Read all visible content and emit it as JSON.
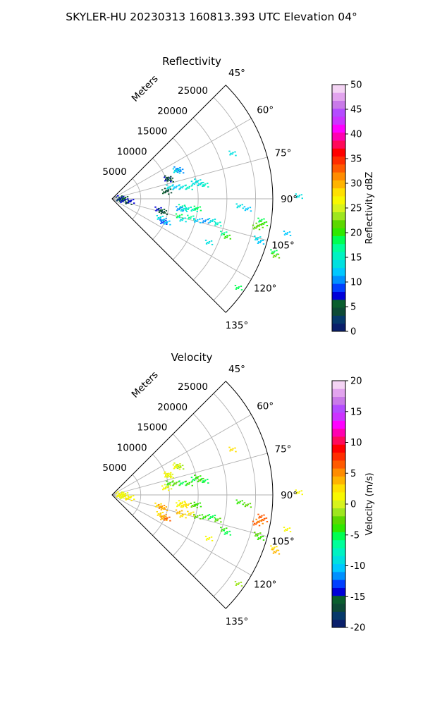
{
  "figure": {
    "title": "SKYLER-HU  20230313  160813.393 UTC Elevation 04°"
  },
  "chart_data": [
    {
      "type": "polar-sector",
      "title": "Reflectivity",
      "radial_axis_label": "Meters",
      "radial_ticks": [
        5000,
        10000,
        15000,
        20000,
        25000
      ],
      "radial_range": [
        0,
        28000
      ],
      "angle_range_deg": [
        45,
        135
      ],
      "angle_ticks": [
        45,
        60,
        75,
        90,
        105,
        120,
        135
      ],
      "angle_tick_labels": [
        "45°",
        "60°",
        "75°",
        "90°",
        "105°",
        "120°",
        "135°"
      ],
      "grid": true,
      "colorbar": {
        "label": "Reflectivity dBZ",
        "range": [
          0,
          50
        ],
        "ticks": [
          0,
          5,
          10,
          15,
          20,
          25,
          30,
          35,
          40,
          45,
          50
        ],
        "colors": [
          "#0a1f6b",
          "#06396a",
          "#0d4a36",
          "#0a5e2e",
          "#0000d8",
          "#0040ff",
          "#0090ff",
          "#00c8ff",
          "#00e0e0",
          "#00f2c2",
          "#00ff9a",
          "#00ff52",
          "#30e800",
          "#5cd800",
          "#9ee61e",
          "#d7f31c",
          "#f8f800",
          "#ffe000",
          "#ffb400",
          "#ff8c00",
          "#ff5a00",
          "#ff2d00",
          "#ff0000",
          "#ff0a5a",
          "#ff00b0",
          "#ff00ff",
          "#cc33ff",
          "#b44cff",
          "#c97ae8",
          "#e2a4ee",
          "#f4d4f4"
        ]
      },
      "gates": [
        {
          "az": 65,
          "r": 12500,
          "value": 11
        },
        {
          "az": 66,
          "r": 12200,
          "value": 13
        },
        {
          "az": 67,
          "r": 12800,
          "value": 10
        },
        {
          "az": 70,
          "r": 10200,
          "value": 8
        },
        {
          "az": 71,
          "r": 10600,
          "value": 6
        },
        {
          "az": 69,
          "r": 10400,
          "value": 4
        },
        {
          "az": 78,
          "r": 10200,
          "value": 13
        },
        {
          "az": 79,
          "r": 11300,
          "value": 12
        },
        {
          "az": 80,
          "r": 12400,
          "value": 14
        },
        {
          "az": 81,
          "r": 13500,
          "value": 15
        },
        {
          "az": 79,
          "r": 14600,
          "value": 14
        },
        {
          "az": 80,
          "r": 15600,
          "value": 13
        },
        {
          "az": 81,
          "r": 16300,
          "value": 15
        },
        {
          "az": 78,
          "r": 15200,
          "value": 13
        },
        {
          "az": 82,
          "r": 9300,
          "value": 6
        },
        {
          "az": 81,
          "r": 9800,
          "value": 4
        },
        {
          "az": 96,
          "r": 12200,
          "value": 17
        },
        {
          "az": 97,
          "r": 13300,
          "value": 16
        },
        {
          "az": 97,
          "r": 14300,
          "value": 15
        },
        {
          "az": 96,
          "r": 14900,
          "value": 18
        },
        {
          "az": 98,
          "r": 12500,
          "value": 13
        },
        {
          "az": 98,
          "r": 11800,
          "value": 10
        },
        {
          "az": 102,
          "r": 8200,
          "value": 8
        },
        {
          "az": 103,
          "r": 8800,
          "value": 5
        },
        {
          "az": 104,
          "r": 9200,
          "value": 4
        },
        {
          "az": 104,
          "r": 12000,
          "value": 18
        },
        {
          "az": 106,
          "r": 12700,
          "value": 14
        },
        {
          "az": 103,
          "r": 14000,
          "value": 17
        },
        {
          "az": 104,
          "r": 15200,
          "value": 12
        },
        {
          "az": 103,
          "r": 16600,
          "value": 10
        },
        {
          "az": 102,
          "r": 17800,
          "value": 13
        },
        {
          "az": 103,
          "r": 18800,
          "value": 16
        },
        {
          "az": 112,
          "r": 9600,
          "value": 10
        },
        {
          "az": 113,
          "r": 10300,
          "value": 12
        },
        {
          "az": 114,
          "r": 9700,
          "value": 9
        },
        {
          "az": 111,
          "r": 8900,
          "value": 13
        },
        {
          "az": 107,
          "r": 20300,
          "value": 17
        },
        {
          "az": 108,
          "r": 21000,
          "value": 20
        },
        {
          "az": 98,
          "r": 26200,
          "value": 18
        },
        {
          "az": 99,
          "r": 26700,
          "value": 20
        },
        {
          "az": 100,
          "r": 26000,
          "value": 22
        },
        {
          "az": 101,
          "r": 25500,
          "value": 21
        },
        {
          "az": 105,
          "r": 26200,
          "value": 14
        },
        {
          "az": 106,
          "r": 26800,
          "value": 12
        },
        {
          "az": 108,
          "r": 29600,
          "value": 19
        },
        {
          "az": 109,
          "r": 30100,
          "value": 21
        },
        {
          "az": 125,
          "r": 26800,
          "value": 18
        },
        {
          "az": 93,
          "r": 22200,
          "value": 14
        },
        {
          "az": 94,
          "r": 23600,
          "value": 12
        },
        {
          "az": 101,
          "r": 31000,
          "value": 12
        },
        {
          "az": 89,
          "r": 32500,
          "value": 13
        },
        {
          "az": 69,
          "r": 22400,
          "value": 13
        },
        {
          "az": 114,
          "r": 18400,
          "value": 14
        },
        {
          "az": 80,
          "r": 1500,
          "value": 7
        },
        {
          "az": 84,
          "r": 2200,
          "value": 5
        },
        {
          "az": 92,
          "r": 1700,
          "value": 6
        },
        {
          "az": 98,
          "r": 1900,
          "value": 8
        },
        {
          "az": 100,
          "r": 2800,
          "value": 4
        },
        {
          "az": 95,
          "r": 3200,
          "value": 7
        },
        {
          "az": 88,
          "r": 1200,
          "value": 3
        }
      ]
    },
    {
      "type": "polar-sector",
      "title": "Velocity",
      "radial_axis_label": "Meters",
      "radial_ticks": [
        5000,
        10000,
        15000,
        20000,
        25000
      ],
      "radial_range": [
        0,
        28000
      ],
      "angle_range_deg": [
        45,
        135
      ],
      "angle_ticks": [
        45,
        60,
        75,
        90,
        105,
        120,
        135
      ],
      "angle_tick_labels": [
        "45°",
        "60°",
        "75°",
        "90°",
        "105°",
        "120°",
        "135°"
      ],
      "grid": true,
      "colorbar": {
        "label": "Velocity (m/s)",
        "range": [
          -20,
          20
        ],
        "ticks": [
          -20,
          -15,
          -10,
          -5,
          0,
          5,
          10,
          15,
          20
        ],
        "colors": [
          "#0a1f6b",
          "#06396a",
          "#0d4a36",
          "#0a5e2e",
          "#0000d8",
          "#0040ff",
          "#0090ff",
          "#00c8ff",
          "#00e0e0",
          "#00f2c2",
          "#00ff9a",
          "#00ff52",
          "#30e800",
          "#5cd800",
          "#9ee61e",
          "#d7f31c",
          "#f8f800",
          "#ffe000",
          "#ffb400",
          "#ff8c00",
          "#ff5a00",
          "#ff2d00",
          "#ff0000",
          "#ff0a5a",
          "#ff00b0",
          "#ff00ff",
          "#cc33ff",
          "#b44cff",
          "#c97ae8",
          "#e2a4ee",
          "#f4d4f4"
        ]
      },
      "gates": [
        {
          "az": 65,
          "r": 12500,
          "value": 0
        },
        {
          "az": 66,
          "r": 12200,
          "value": 1
        },
        {
          "az": 67,
          "r": 12800,
          "value": -1
        },
        {
          "az": 70,
          "r": 10200,
          "value": 1
        },
        {
          "az": 71,
          "r": 10600,
          "value": 0
        },
        {
          "az": 69,
          "r": 10400,
          "value": 1
        },
        {
          "az": 78,
          "r": 10200,
          "value": -4
        },
        {
          "az": 79,
          "r": 11300,
          "value": -3
        },
        {
          "az": 80,
          "r": 12400,
          "value": -5
        },
        {
          "az": 81,
          "r": 13500,
          "value": -4
        },
        {
          "az": 79,
          "r": 14600,
          "value": -5
        },
        {
          "az": 80,
          "r": 15600,
          "value": -3
        },
        {
          "az": 81,
          "r": 16300,
          "value": -5
        },
        {
          "az": 78,
          "r": 15200,
          "value": -4
        },
        {
          "az": 82,
          "r": 9300,
          "value": 1
        },
        {
          "az": 81,
          "r": 9800,
          "value": 0
        },
        {
          "az": 96,
          "r": 12200,
          "value": 1
        },
        {
          "az": 97,
          "r": 13300,
          "value": 3
        },
        {
          "az": 97,
          "r": 14300,
          "value": -2
        },
        {
          "az": 96,
          "r": 14900,
          "value": -4
        },
        {
          "az": 98,
          "r": 12500,
          "value": 2
        },
        {
          "az": 98,
          "r": 11800,
          "value": 1
        },
        {
          "az": 102,
          "r": 8200,
          "value": 3
        },
        {
          "az": 103,
          "r": 8800,
          "value": 5
        },
        {
          "az": 104,
          "r": 9200,
          "value": 4
        },
        {
          "az": 104,
          "r": 12000,
          "value": 4
        },
        {
          "az": 106,
          "r": 12700,
          "value": 3
        },
        {
          "az": 103,
          "r": 14000,
          "value": 2
        },
        {
          "az": 104,
          "r": 15200,
          "value": -3
        },
        {
          "az": 103,
          "r": 16600,
          "value": -4
        },
        {
          "az": 102,
          "r": 17800,
          "value": -5
        },
        {
          "az": 103,
          "r": 18800,
          "value": -3
        },
        {
          "az": 112,
          "r": 9600,
          "value": 5
        },
        {
          "az": 113,
          "r": 10300,
          "value": 6
        },
        {
          "az": 114,
          "r": 9700,
          "value": 4
        },
        {
          "az": 111,
          "r": 8900,
          "value": 3
        },
        {
          "az": 107,
          "r": 20300,
          "value": -4
        },
        {
          "az": 108,
          "r": 21000,
          "value": -5
        },
        {
          "az": 98,
          "r": 26200,
          "value": 6
        },
        {
          "az": 99,
          "r": 26700,
          "value": 7
        },
        {
          "az": 100,
          "r": 26000,
          "value": 5
        },
        {
          "az": 101,
          "r": 25500,
          "value": 6
        },
        {
          "az": 105,
          "r": 26200,
          "value": -3
        },
        {
          "az": 106,
          "r": 26800,
          "value": -4
        },
        {
          "az": 108,
          "r": 29600,
          "value": 3
        },
        {
          "az": 109,
          "r": 30100,
          "value": 4
        },
        {
          "az": 125,
          "r": 26800,
          "value": -1
        },
        {
          "az": 93,
          "r": 22200,
          "value": -4
        },
        {
          "az": 94,
          "r": 23600,
          "value": -3
        },
        {
          "az": 101,
          "r": 31000,
          "value": 1
        },
        {
          "az": 89,
          "r": 32500,
          "value": 1
        },
        {
          "az": 69,
          "r": 22400,
          "value": 3
        },
        {
          "az": 114,
          "r": 18400,
          "value": 1
        },
        {
          "az": 80,
          "r": 1500,
          "value": 1
        },
        {
          "az": 84,
          "r": 2200,
          "value": 0
        },
        {
          "az": 92,
          "r": 1700,
          "value": 1
        },
        {
          "az": 98,
          "r": 1900,
          "value": 0
        },
        {
          "az": 100,
          "r": 2800,
          "value": 2
        },
        {
          "az": 95,
          "r": 3200,
          "value": 1
        },
        {
          "az": 88,
          "r": 1200,
          "value": 1
        }
      ]
    }
  ]
}
